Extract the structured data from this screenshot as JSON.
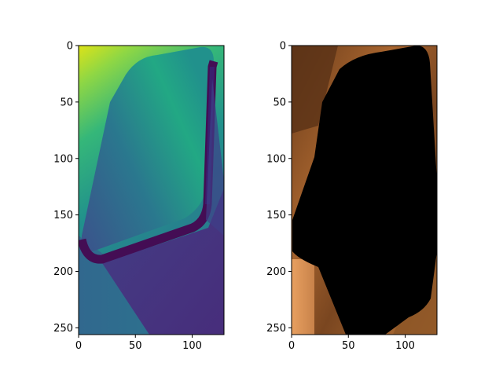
{
  "chart_data": [
    {
      "type": "heatmap",
      "colormap": "viridis",
      "xlim": [
        0,
        128
      ],
      "ylim": [
        256,
        0
      ],
      "xticks": [
        0,
        50,
        100
      ],
      "yticks": [
        0,
        50,
        100,
        150,
        200,
        250
      ],
      "grid": false,
      "legend": "none"
    },
    {
      "type": "heatmap",
      "colormap": "copper",
      "xlim": [
        0,
        128
      ],
      "ylim": [
        256,
        0
      ],
      "xticks": [
        0,
        50,
        100
      ],
      "yticks": [
        0,
        50,
        100,
        150,
        200,
        250
      ],
      "grid": false,
      "legend": "none",
      "mask_color": "#000000"
    }
  ]
}
